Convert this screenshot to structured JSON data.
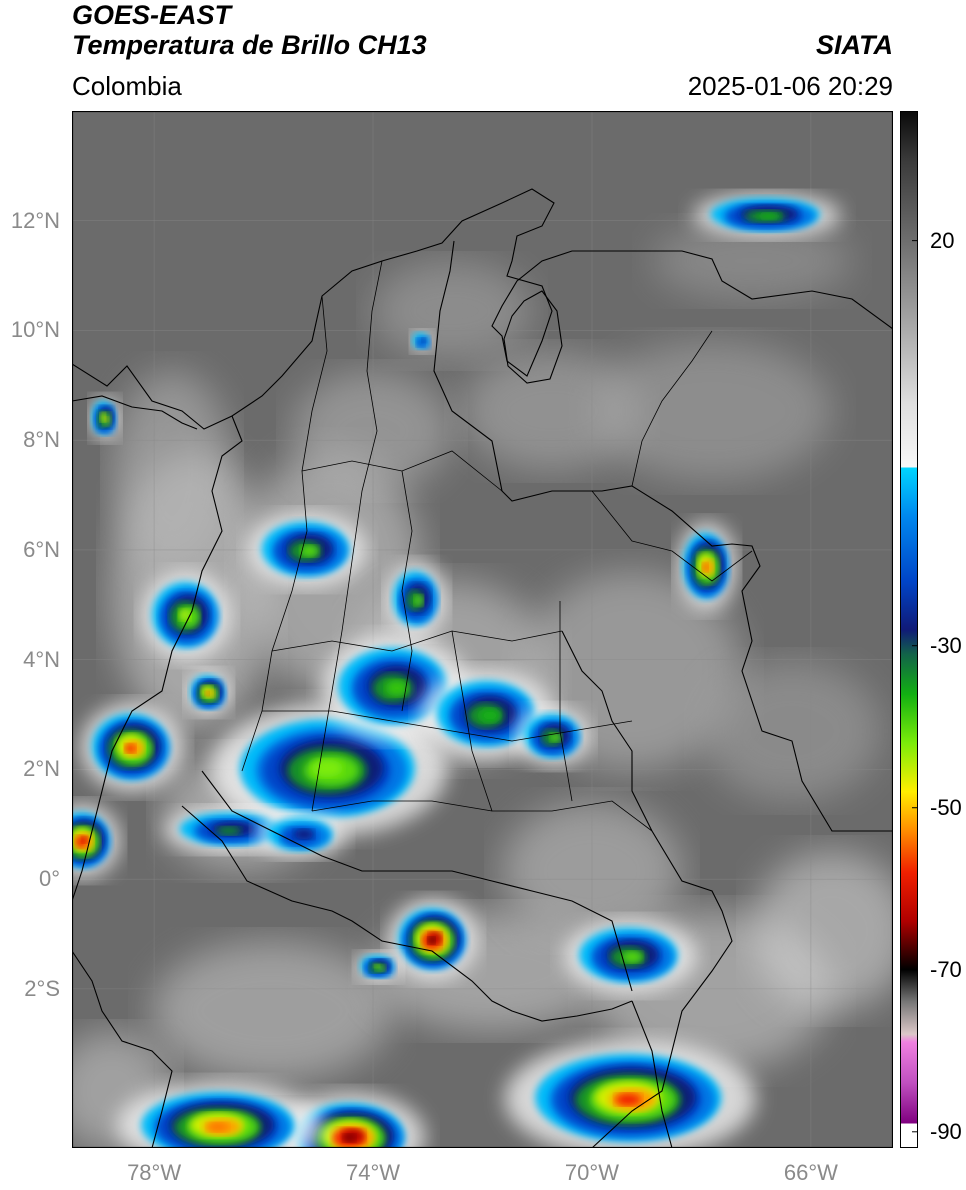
{
  "header": {
    "satellite": "GOES-EAST",
    "product": "Temperatura de Brillo CH13",
    "brand": "SIATA",
    "region": "Colombia",
    "datetime": "2025-01-06 20:29"
  },
  "map": {
    "lon_range": [
      -79.5,
      -64.5
    ],
    "lat_range": [
      -4.9,
      14.0
    ],
    "lat_ticks": [
      {
        "value": 12,
        "label": "12°N"
      },
      {
        "value": 10,
        "label": "10°N"
      },
      {
        "value": 8,
        "label": "8°N"
      },
      {
        "value": 6,
        "label": "6°N"
      },
      {
        "value": 4,
        "label": "4°N"
      },
      {
        "value": 2,
        "label": "2°N"
      },
      {
        "value": 0,
        "label": "0°"
      },
      {
        "value": -2,
        "label": "2°S"
      }
    ],
    "lon_ticks": [
      {
        "value": -78,
        "label": "78°W"
      },
      {
        "value": -74,
        "label": "74°W"
      },
      {
        "value": -70,
        "label": "70°W"
      },
      {
        "value": -66,
        "label": "66°W"
      }
    ],
    "background_color": "#6b6b6b",
    "border_color": "#000000"
  },
  "colorbar": {
    "range": [
      -92,
      36
    ],
    "ticks": [
      {
        "value": 20,
        "label": "20"
      },
      {
        "value": -30,
        "label": "-30"
      },
      {
        "value": -50,
        "label": "-50"
      },
      {
        "value": -70,
        "label": "-70"
      },
      {
        "value": -90,
        "label": "-90"
      }
    ],
    "stops": [
      {
        "v": 36,
        "c": "#0a0a0a"
      },
      {
        "v": 30,
        "c": "#3a3a3a"
      },
      {
        "v": 20,
        "c": "#6e6e6e"
      },
      {
        "v": 10,
        "c": "#a5a5a5"
      },
      {
        "v": 0,
        "c": "#dedede"
      },
      {
        "v": -8,
        "c": "#f8f8f8"
      },
      {
        "v": -8,
        "c": "#00d5ff"
      },
      {
        "v": -14,
        "c": "#0088ee"
      },
      {
        "v": -22,
        "c": "#0045c8"
      },
      {
        "v": -28,
        "c": "#101a78"
      },
      {
        "v": -31,
        "c": "#12624a"
      },
      {
        "v": -36,
        "c": "#12b012"
      },
      {
        "v": -42,
        "c": "#7bec0a"
      },
      {
        "v": -48,
        "c": "#ffee00"
      },
      {
        "v": -53,
        "c": "#ff8a00"
      },
      {
        "v": -58,
        "c": "#f02000"
      },
      {
        "v": -64,
        "c": "#b00000"
      },
      {
        "v": -68,
        "c": "#3a0000"
      },
      {
        "v": -70,
        "c": "#000000"
      },
      {
        "v": -74,
        "c": "#777777"
      },
      {
        "v": -78,
        "c": "#dcc8c8"
      },
      {
        "v": -79,
        "c": "#f080e0"
      },
      {
        "v": -84,
        "c": "#c050c0"
      },
      {
        "v": -89,
        "c": "#800080"
      },
      {
        "v": -89,
        "c": "#ffffff"
      },
      {
        "v": -92,
        "c": "#ffffff"
      }
    ]
  },
  "storm_cells": [
    {
      "lon": -74.8,
      "lat": 2.0,
      "rx": 1.6,
      "ry": 0.9,
      "t": -42
    },
    {
      "lon": -75.2,
      "lat": 6.0,
      "rx": 0.8,
      "ry": 0.5,
      "t": -40
    },
    {
      "lon": -77.4,
      "lat": 4.8,
      "rx": 0.6,
      "ry": 0.6,
      "t": -44
    },
    {
      "lon": -77.0,
      "lat": 3.4,
      "rx": 0.3,
      "ry": 0.3,
      "t": -58
    },
    {
      "lon": -78.4,
      "lat": 2.4,
      "rx": 0.7,
      "ry": 0.6,
      "t": -58
    },
    {
      "lon": -79.3,
      "lat": 0.7,
      "rx": 0.5,
      "ry": 0.5,
      "t": -62
    },
    {
      "lon": -72.9,
      "lat": -1.1,
      "rx": 0.6,
      "ry": 0.55,
      "t": -68
    },
    {
      "lon": -67.9,
      "lat": 5.7,
      "rx": 0.4,
      "ry": 0.6,
      "t": -56
    },
    {
      "lon": -73.6,
      "lat": 3.5,
      "rx": 1.0,
      "ry": 0.7,
      "t": -38
    },
    {
      "lon": -71.9,
      "lat": 3.0,
      "rx": 0.9,
      "ry": 0.6,
      "t": -36
    },
    {
      "lon": -70.7,
      "lat": 2.6,
      "rx": 0.5,
      "ry": 0.4,
      "t": -40
    },
    {
      "lon": -73.2,
      "lat": 5.1,
      "rx": 0.4,
      "ry": 0.5,
      "t": -40
    },
    {
      "lon": -69.3,
      "lat": -1.4,
      "rx": 0.9,
      "ry": 0.5,
      "t": -40
    },
    {
      "lon": -69.3,
      "lat": -4.0,
      "rx": 1.7,
      "ry": 0.8,
      "t": -58
    },
    {
      "lon": -74.4,
      "lat": -4.7,
      "rx": 1.0,
      "ry": 0.6,
      "t": -66
    },
    {
      "lon": -76.8,
      "lat": -4.5,
      "rx": 1.4,
      "ry": 0.6,
      "t": -54
    },
    {
      "lon": -66.8,
      "lat": 12.1,
      "rx": 1.0,
      "ry": 0.3,
      "t": -36
    },
    {
      "lon": -76.6,
      "lat": 0.9,
      "rx": 0.9,
      "ry": 0.3,
      "t": -34
    },
    {
      "lon": -75.3,
      "lat": 0.8,
      "rx": 0.6,
      "ry": 0.3,
      "t": -28
    },
    {
      "lon": -73.9,
      "lat": -1.6,
      "rx": 0.3,
      "ry": 0.2,
      "t": -44
    },
    {
      "lon": -78.9,
      "lat": 8.4,
      "rx": 0.2,
      "ry": 0.3,
      "t": -52
    },
    {
      "lon": -73.1,
      "lat": 9.8,
      "rx": 0.15,
      "ry": 0.15,
      "t": -26
    }
  ]
}
